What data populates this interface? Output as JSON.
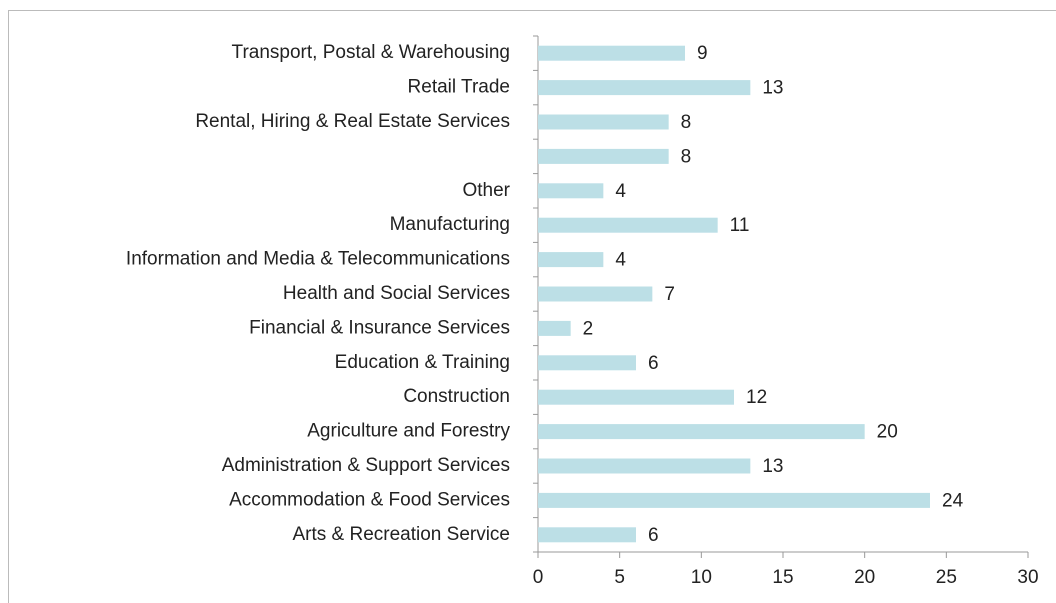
{
  "chart_data": {
    "type": "bar",
    "orientation": "horizontal",
    "categories": [
      "Transport, Postal & Warehousing",
      "Retail Trade",
      "Rental, Hiring & Real Estate Services",
      null,
      "Other",
      "Manufacturing",
      "Information and Media & Telecommunications",
      "Health and Social Services",
      "Financial & Insurance Services",
      "Education & Training",
      "Construction",
      "Agriculture and Forestry",
      "Administration & Support Services",
      "Accommodation & Food Services",
      "Arts & Recreation Service"
    ],
    "values": [
      9,
      13,
      8,
      8,
      4,
      11,
      4,
      7,
      2,
      6,
      12,
      20,
      13,
      24,
      6
    ],
    "color": "#bcdfe6",
    "xlim": [
      0,
      30
    ],
    "xticks": [
      0,
      5,
      10,
      15,
      20,
      25,
      30
    ],
    "grid": false
  }
}
